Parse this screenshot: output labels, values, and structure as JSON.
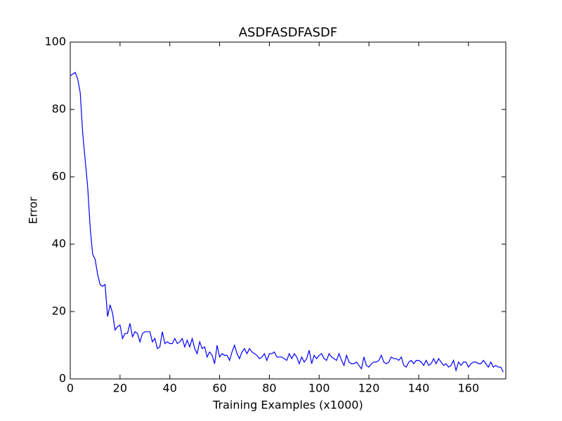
{
  "chart_data": {
    "type": "line",
    "title": "ASDFASDFASDF",
    "x_label": "Training Examples (x1000)",
    "y_label": "Error",
    "color": "#0000ff",
    "x": [
      0,
      1,
      2,
      3,
      4,
      5,
      6,
      7,
      8,
      9,
      10,
      11,
      12,
      13,
      14,
      15,
      16,
      17,
      18,
      19,
      20,
      21,
      22,
      23,
      24,
      25,
      26,
      27,
      28,
      29,
      30,
      31,
      32,
      33,
      34,
      35,
      36,
      37,
      38,
      39,
      40,
      41,
      42,
      43,
      44,
      45,
      46,
      47,
      48,
      49,
      50,
      51,
      52,
      53,
      54,
      55,
      56,
      57,
      58,
      59,
      60,
      61,
      62,
      63,
      64,
      65,
      66,
      67,
      68,
      69,
      70,
      71,
      72,
      73,
      74,
      75,
      76,
      77,
      78,
      79,
      80,
      81,
      82,
      83,
      84,
      85,
      86,
      87,
      88,
      89,
      90,
      91,
      92,
      93,
      94,
      95,
      96,
      97,
      98,
      99,
      100,
      101,
      102,
      103,
      104,
      105,
      106,
      107,
      108,
      109,
      110,
      111,
      112,
      113,
      114,
      115,
      116,
      117,
      118,
      119,
      120,
      121,
      122,
      123,
      124,
      125,
      126,
      127,
      128,
      129,
      130,
      131,
      132,
      133,
      134,
      135,
      136,
      137,
      138,
      139,
      140,
      141,
      142,
      143,
      144,
      145,
      146,
      147,
      148,
      149,
      150,
      151,
      152,
      153,
      154,
      155,
      156,
      157,
      158,
      159,
      160,
      161,
      162,
      163,
      164,
      165,
      166,
      167,
      168,
      169,
      170,
      171,
      172,
      173,
      174
    ],
    "values": [
      90,
      90.5,
      91,
      89,
      85,
      73,
      65,
      57,
      45,
      37,
      35.5,
      31,
      28,
      27.5,
      28,
      18.5,
      22,
      19.5,
      14.5,
      15.5,
      16,
      12,
      13.5,
      13.5,
      16.5,
      12.5,
      14,
      13.5,
      11,
      13.5,
      14,
      14,
      14,
      11,
      12,
      9,
      9.5,
      14,
      10.5,
      11,
      10.5,
      10.5,
      12,
      10.5,
      11,
      12,
      9.5,
      11.5,
      9.5,
      12,
      9,
      7.5,
      11,
      9,
      9.5,
      6.5,
      8,
      7,
      4.5,
      10,
      6.5,
      7.5,
      7,
      7,
      5.5,
      8,
      10,
      7.5,
      6,
      8,
      9,
      7.5,
      9,
      8,
      7.5,
      7,
      6,
      6.5,
      7.5,
      5.5,
      7.5,
      7.5,
      8,
      6.5,
      6.5,
      6.5,
      6,
      5.5,
      7.5,
      6,
      7.5,
      6.5,
      4.5,
      6.5,
      5,
      6,
      8.5,
      4.5,
      7,
      6,
      7,
      7.5,
      6,
      5.5,
      7.5,
      6.5,
      6,
      5.5,
      7.5,
      5.5,
      4,
      7,
      5,
      4.5,
      4.5,
      5,
      4,
      3,
      6.5,
      4,
      3.5,
      4.5,
      5,
      5,
      5.5,
      7,
      5,
      4.5,
      5,
      6.5,
      6,
      6,
      5.5,
      6.5,
      4,
      3.5,
      5,
      5.5,
      4.5,
      5.5,
      5.5,
      5,
      4,
      5.5,
      4,
      4.5,
      6,
      4.5,
      6,
      5,
      4,
      4.5,
      3.5,
      4,
      5.5,
      2.5,
      5,
      4,
      5,
      5,
      3.5,
      4.5,
      5,
      5,
      4.5,
      4.5,
      5.5,
      4.5,
      3.5,
      5,
      3.5,
      4,
      3.5,
      3.5,
      2
    ],
    "xlim": [
      0,
      175
    ],
    "ylim": [
      0,
      100
    ],
    "xticks": [
      0,
      20,
      40,
      60,
      80,
      100,
      120,
      140,
      160
    ],
    "yticks": [
      0,
      20,
      40,
      60,
      80,
      100
    ]
  }
}
